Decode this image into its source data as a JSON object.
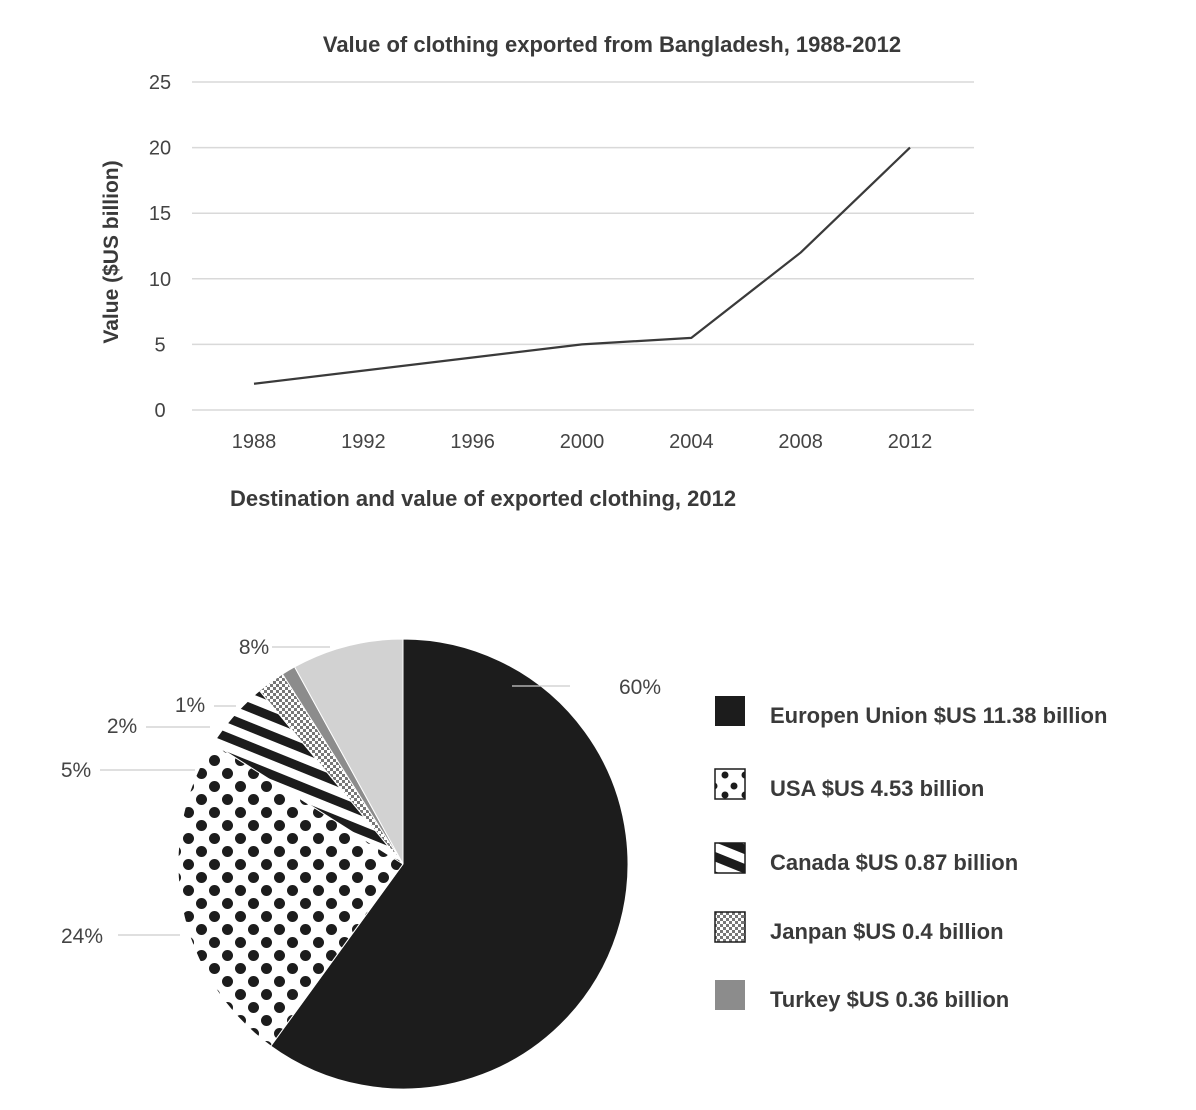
{
  "chart_data": [
    {
      "type": "line",
      "title": "Value of clothing exported from Bangladesh, 1988-2012",
      "xlabel": "",
      "ylabel": "Value ($US billion)",
      "ylim": [
        0,
        25
      ],
      "yticks": [
        0,
        5,
        10,
        15,
        20,
        25
      ],
      "x": [
        1988,
        1992,
        1996,
        2000,
        2004,
        2008,
        2012
      ],
      "series": [
        {
          "values": [
            2,
            3,
            4,
            5,
            5.5,
            12,
            20
          ]
        }
      ],
      "grid": true
    },
    {
      "type": "pie",
      "title": "Destination and value of exported clothing, 2012",
      "slices": [
        {
          "percent_label": "60%",
          "value": 60,
          "legend": "Europen Union $US 11.38 billion",
          "pattern": "solid-black"
        },
        {
          "percent_label": "24%",
          "value": 24,
          "legend": "USA $US 4.53 billion",
          "pattern": "dots"
        },
        {
          "percent_label": "5%",
          "value": 5,
          "legend": "Canada $US 0.87 billion",
          "pattern": "stripes"
        },
        {
          "percent_label": "2%",
          "value": 2,
          "legend": "Janpan $US 0.4 billion",
          "pattern": "checker"
        },
        {
          "percent_label": "1%",
          "value": 1,
          "legend": "Turkey $US 0.36 billion",
          "pattern": "solid-gray"
        },
        {
          "percent_label": "8%",
          "value": 8,
          "legend": "",
          "pattern": "solid-lightgray"
        }
      ],
      "legend_position": "right"
    }
  ],
  "colors": {
    "black": "#1c1c1c",
    "gray": "#8c8c8c",
    "lightgray": "#d2d2d2",
    "line": "#3a3a3a"
  }
}
